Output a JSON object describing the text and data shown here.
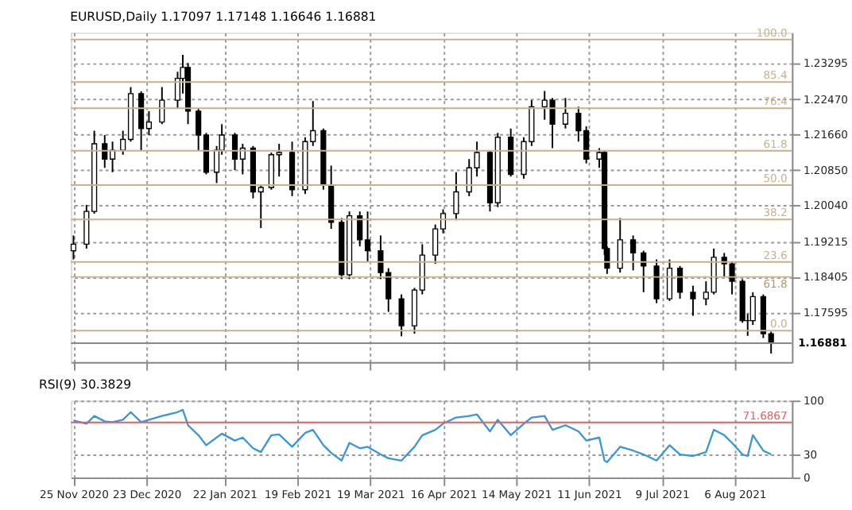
{
  "chart_data": [
    {
      "type": "candlestick",
      "title": "EURUSD,Daily 1.17097 1.17148 1.16646 1.16881",
      "x": [
        "2020-11-25",
        "2020-11-30",
        "2020-12-03",
        "2020-12-07",
        "2020-12-10",
        "2020-12-14",
        "2020-12-17",
        "2020-12-21",
        "2020-12-24",
        "2020-12-29",
        "2021-01-04",
        "2021-01-06",
        "2021-01-08",
        "2021-01-12",
        "2021-01-15",
        "2021-01-19",
        "2021-01-21",
        "2021-01-26",
        "2021-01-29",
        "2021-02-02",
        "2021-02-05",
        "2021-02-09",
        "2021-02-12",
        "2021-02-17",
        "2021-02-22",
        "2021-02-25",
        "2021-03-01",
        "2021-03-04",
        "2021-03-08",
        "2021-03-11",
        "2021-03-15",
        "2021-03-18",
        "2021-03-23",
        "2021-03-26",
        "2021-03-31",
        "2021-04-05",
        "2021-04-08",
        "2021-04-13",
        "2021-04-16",
        "2021-04-21",
        "2021-04-26",
        "2021-04-29",
        "2021-05-04",
        "2021-05-07",
        "2021-05-12",
        "2021-05-17",
        "2021-05-20",
        "2021-05-25",
        "2021-05-28",
        "2021-06-02",
        "2021-06-07",
        "2021-06-10",
        "2021-06-15",
        "2021-06-17",
        "2021-06-18",
        "2021-06-23",
        "2021-06-28",
        "2021-07-02",
        "2021-07-07",
        "2021-07-12",
        "2021-07-16",
        "2021-07-21",
        "2021-07-26",
        "2021-07-29",
        "2021-08-02",
        "2021-08-05",
        "2021-08-09",
        "2021-08-11",
        "2021-08-13",
        "2021-08-17",
        "2021-08-20"
      ],
      "ohlc": [
        [
          1.19,
          1.1935,
          1.188,
          1.1915
        ],
        [
          1.1915,
          1.2005,
          1.1905,
          1.199
        ],
        [
          1.199,
          1.2175,
          1.1985,
          1.2145
        ],
        [
          1.2145,
          1.2165,
          1.209,
          1.211
        ],
        [
          1.211,
          1.215,
          1.208,
          1.213
        ],
        [
          1.213,
          1.2175,
          1.212,
          1.2155
        ],
        [
          1.2155,
          1.2275,
          1.215,
          1.226
        ],
        [
          1.226,
          1.2265,
          1.213,
          1.218
        ],
        [
          1.218,
          1.222,
          1.2165,
          1.2195
        ],
        [
          1.2195,
          1.2275,
          1.219,
          1.2245
        ],
        [
          1.2245,
          1.231,
          1.2225,
          1.2295
        ],
        [
          1.2295,
          1.2349,
          1.226,
          1.232
        ],
        [
          1.232,
          1.233,
          1.219,
          1.222
        ],
        [
          1.222,
          1.2225,
          1.213,
          1.2165
        ],
        [
          1.2165,
          1.217,
          1.2075,
          1.208
        ],
        [
          1.208,
          1.214,
          1.2055,
          1.213
        ],
        [
          1.213,
          1.219,
          1.212,
          1.2165
        ],
        [
          1.2165,
          1.217,
          1.2085,
          1.211
        ],
        [
          1.211,
          1.2145,
          1.2075,
          1.2135
        ],
        [
          1.2135,
          1.214,
          1.202,
          1.2035
        ],
        [
          1.2035,
          1.205,
          1.1952,
          1.2045
        ],
        [
          1.2045,
          1.2125,
          1.204,
          1.212
        ],
        [
          1.212,
          1.2145,
          1.207,
          1.2125
        ],
        [
          1.2125,
          1.215,
          1.2025,
          1.204
        ],
        [
          1.204,
          1.216,
          1.203,
          1.215
        ],
        [
          1.215,
          1.2243,
          1.214,
          1.2175
        ],
        [
          1.2175,
          1.218,
          1.204,
          1.205
        ],
        [
          1.205,
          1.2095,
          1.195,
          1.1965
        ],
        [
          1.1965,
          1.1975,
          1.1835,
          1.1845
        ],
        [
          1.1845,
          1.199,
          1.1835,
          1.198
        ],
        [
          1.198,
          1.199,
          1.191,
          1.1925
        ],
        [
          1.1925,
          1.199,
          1.1875,
          1.19
        ],
        [
          1.19,
          1.1935,
          1.1835,
          1.185
        ],
        [
          1.185,
          1.186,
          1.176,
          1.179
        ],
        [
          1.179,
          1.18,
          1.1704,
          1.1728
        ],
        [
          1.1728,
          1.1815,
          1.171,
          1.181
        ],
        [
          1.181,
          1.1915,
          1.18,
          1.189
        ],
        [
          1.189,
          1.196,
          1.187,
          1.195
        ],
        [
          1.195,
          1.1995,
          1.194,
          1.1985
        ],
        [
          1.1985,
          1.208,
          1.197,
          1.2035
        ],
        [
          1.2035,
          1.211,
          1.2025,
          1.209
        ],
        [
          1.209,
          1.215,
          1.207,
          1.2125
        ],
        [
          1.2125,
          1.213,
          1.199,
          1.201
        ],
        [
          1.201,
          1.217,
          1.2,
          1.216
        ],
        [
          1.216,
          1.218,
          1.207,
          1.2075
        ],
        [
          1.2075,
          1.216,
          1.2065,
          1.215
        ],
        [
          1.215,
          1.2245,
          1.214,
          1.223
        ],
        [
          1.223,
          1.2266,
          1.22,
          1.2245
        ],
        [
          1.2245,
          1.225,
          1.2135,
          1.219
        ],
        [
          1.219,
          1.225,
          1.218,
          1.2215
        ],
        [
          1.2215,
          1.223,
          1.215,
          1.2175
        ],
        [
          1.2175,
          1.2185,
          1.21,
          1.211
        ],
        [
          1.211,
          1.2135,
          1.209,
          1.2125
        ],
        [
          1.2125,
          1.213,
          1.189,
          1.1905
        ],
        [
          1.1905,
          1.191,
          1.1847,
          1.186
        ],
        [
          1.186,
          1.1975,
          1.185,
          1.1925
        ],
        [
          1.1925,
          1.1935,
          1.1855,
          1.1895
        ],
        [
          1.1895,
          1.19,
          1.1805,
          1.1865
        ],
        [
          1.1865,
          1.188,
          1.178,
          1.179
        ],
        [
          1.179,
          1.188,
          1.1785,
          1.186
        ],
        [
          1.186,
          1.1865,
          1.179,
          1.1805
        ],
        [
          1.1805,
          1.182,
          1.1751,
          1.179
        ],
        [
          1.179,
          1.183,
          1.1775,
          1.1805
        ],
        [
          1.1805,
          1.1905,
          1.18,
          1.1885
        ],
        [
          1.1885,
          1.1895,
          1.184,
          1.187
        ],
        [
          1.187,
          1.1875,
          1.18,
          1.183
        ],
        [
          1.183,
          1.1835,
          1.1735,
          1.174
        ],
        [
          1.174,
          1.1755,
          1.1705,
          1.174
        ],
        [
          1.174,
          1.1805,
          1.173,
          1.1795
        ],
        [
          1.1795,
          1.18,
          1.17,
          1.171
        ],
        [
          1.17097,
          1.17148,
          1.16646,
          1.16881
        ]
      ],
      "xlim": [
        "2020-11-24",
        "2021-08-28"
      ],
      "xticks": [
        {
          "value": "2020-11-25",
          "label": null
        },
        {
          "value": "2020-12-23",
          "label": null
        },
        {
          "value": "2021-01-22",
          "label": null
        },
        {
          "value": "2021-02-19",
          "label": null
        },
        {
          "value": "2021-03-19",
          "label": null
        },
        {
          "value": "2021-04-16",
          "label": null
        },
        {
          "value": "2021-05-14",
          "label": null
        },
        {
          "value": "2021-06-11",
          "label": null
        },
        {
          "value": "2021-07-09",
          "label": null
        },
        {
          "value": "2021-08-06",
          "label": null
        }
      ],
      "ylim": [
        1.1645,
        1.24
      ],
      "yticks": [
        {
          "value": 1.23295,
          "label": "1.23295"
        },
        {
          "value": 1.2247,
          "label": "1.22470"
        },
        {
          "value": 1.2166,
          "label": "1.21660"
        },
        {
          "value": 1.2085,
          "label": "1.20850"
        },
        {
          "value": 1.2004,
          "label": "1.20040"
        },
        {
          "value": 1.19215,
          "label": "1.19215"
        },
        {
          "value": 1.18405,
          "label": "1.18405"
        },
        {
          "value": 1.17595,
          "label": "1.17595"
        }
      ],
      "y2lim": [
        -10.8,
        102.4
      ],
      "ref_lines": [
        {
          "axis": "y2",
          "value": 100.0,
          "label": "100.0",
          "color": "#c8b08c"
        },
        {
          "axis": "y2",
          "value": 85.4,
          "label": "85.4",
          "color": "#c8b08c"
        },
        {
          "axis": "y2",
          "value": 76.4,
          "label": "76.4",
          "color": "#c8b08c"
        },
        {
          "axis": "y2",
          "value": 61.8,
          "label": "61.8",
          "color": "#c8b08c"
        },
        {
          "axis": "y2",
          "value": 50.0,
          "label": "50.0",
          "color": "#c8b08c"
        },
        {
          "axis": "y2",
          "value": 38.2,
          "label": "38.2",
          "color": "#c8b08c"
        },
        {
          "axis": "y2",
          "value": 23.6,
          "label": "23.6",
          "color": "#c8b08c"
        },
        {
          "axis": "y",
          "value": 1.184,
          "color": "#c8b08c"
        },
        {
          "axis": "y2",
          "value": 0.0,
          "label": "0.0",
          "color": "#c8b08c"
        },
        {
          "axis": "y",
          "value": 1.16881,
          "label": "1.16881",
          "color": "#888888"
        }
      ],
      "annotations": [
        "61.8"
      ],
      "grid": true,
      "tick_labels": "y"
    },
    {
      "type": "line",
      "title": "RSI(9) 30.3829",
      "x": [
        "2020-11-25",
        "2020-11-30",
        "2020-12-03",
        "2020-12-07",
        "2020-12-10",
        "2020-12-14",
        "2020-12-17",
        "2020-12-21",
        "2020-12-24",
        "2020-12-29",
        "2021-01-04",
        "2021-01-06",
        "2021-01-08",
        "2021-01-12",
        "2021-01-15",
        "2021-01-19",
        "2021-01-21",
        "2021-01-26",
        "2021-01-29",
        "2021-02-02",
        "2021-02-05",
        "2021-02-09",
        "2021-02-12",
        "2021-02-17",
        "2021-02-22",
        "2021-02-25",
        "2021-03-01",
        "2021-03-04",
        "2021-03-08",
        "2021-03-11",
        "2021-03-15",
        "2021-03-18",
        "2021-03-23",
        "2021-03-26",
        "2021-03-31",
        "2021-04-05",
        "2021-04-08",
        "2021-04-13",
        "2021-04-16",
        "2021-04-21",
        "2021-04-26",
        "2021-04-29",
        "2021-05-04",
        "2021-05-07",
        "2021-05-12",
        "2021-05-17",
        "2021-05-20",
        "2021-05-25",
        "2021-05-28",
        "2021-06-02",
        "2021-06-07",
        "2021-06-10",
        "2021-06-15",
        "2021-06-17",
        "2021-06-18",
        "2021-06-23",
        "2021-06-28",
        "2021-07-02",
        "2021-07-07",
        "2021-07-12",
        "2021-07-16",
        "2021-07-21",
        "2021-07-26",
        "2021-07-29",
        "2021-08-02",
        "2021-08-05",
        "2021-08-09",
        "2021-08-11",
        "2021-08-13",
        "2021-08-17",
        "2021-08-20"
      ],
      "series": [
        {
          "color": "#3c96d2",
          "values": [
            74,
            70,
            80,
            73,
            72,
            75,
            85,
            72,
            75,
            80,
            85,
            88,
            68,
            55,
            42,
            52,
            57,
            48,
            52,
            38,
            33,
            55,
            56,
            40,
            58,
            62,
            42,
            32,
            22,
            45,
            38,
            40,
            30,
            25,
            22,
            40,
            55,
            62,
            70,
            78,
            80,
            82,
            60,
            75,
            55,
            70,
            78,
            80,
            62,
            68,
            60,
            48,
            52,
            22,
            20,
            40,
            35,
            30,
            22,
            42,
            30,
            28,
            33,
            62,
            55,
            45,
            30,
            28,
            55,
            35,
            30
          ]
        }
      ],
      "xlim": [
        "2020-11-24",
        "2021-08-28"
      ],
      "xticks": [
        {
          "value": "2020-11-25",
          "label": "25 Nov 2020"
        },
        {
          "value": "2020-12-23",
          "label": "23 Dec 2020"
        },
        {
          "value": "2021-01-22",
          "label": "22 Jan 2021"
        },
        {
          "value": "2021-02-19",
          "label": "19 Feb 2021"
        },
        {
          "value": "2021-03-19",
          "label": "19 Mar 2021"
        },
        {
          "value": "2021-04-16",
          "label": "16 Apr 2021"
        },
        {
          "value": "2021-05-14",
          "label": "14 May 2021"
        },
        {
          "value": "2021-06-11",
          "label": "11 Jun 2021"
        },
        {
          "value": "2021-07-09",
          "label": "9 Jul 2021"
        },
        {
          "value": "2021-08-06",
          "label": "6 Aug 2021"
        }
      ],
      "ylim": [
        0,
        100
      ],
      "yticks": [
        0,
        30,
        100
      ],
      "ref_lines": [
        {
          "axis": "y",
          "value": 71.6867,
          "label": "71.6867",
          "color": "#e06060"
        }
      ],
      "grid": true
    }
  ]
}
